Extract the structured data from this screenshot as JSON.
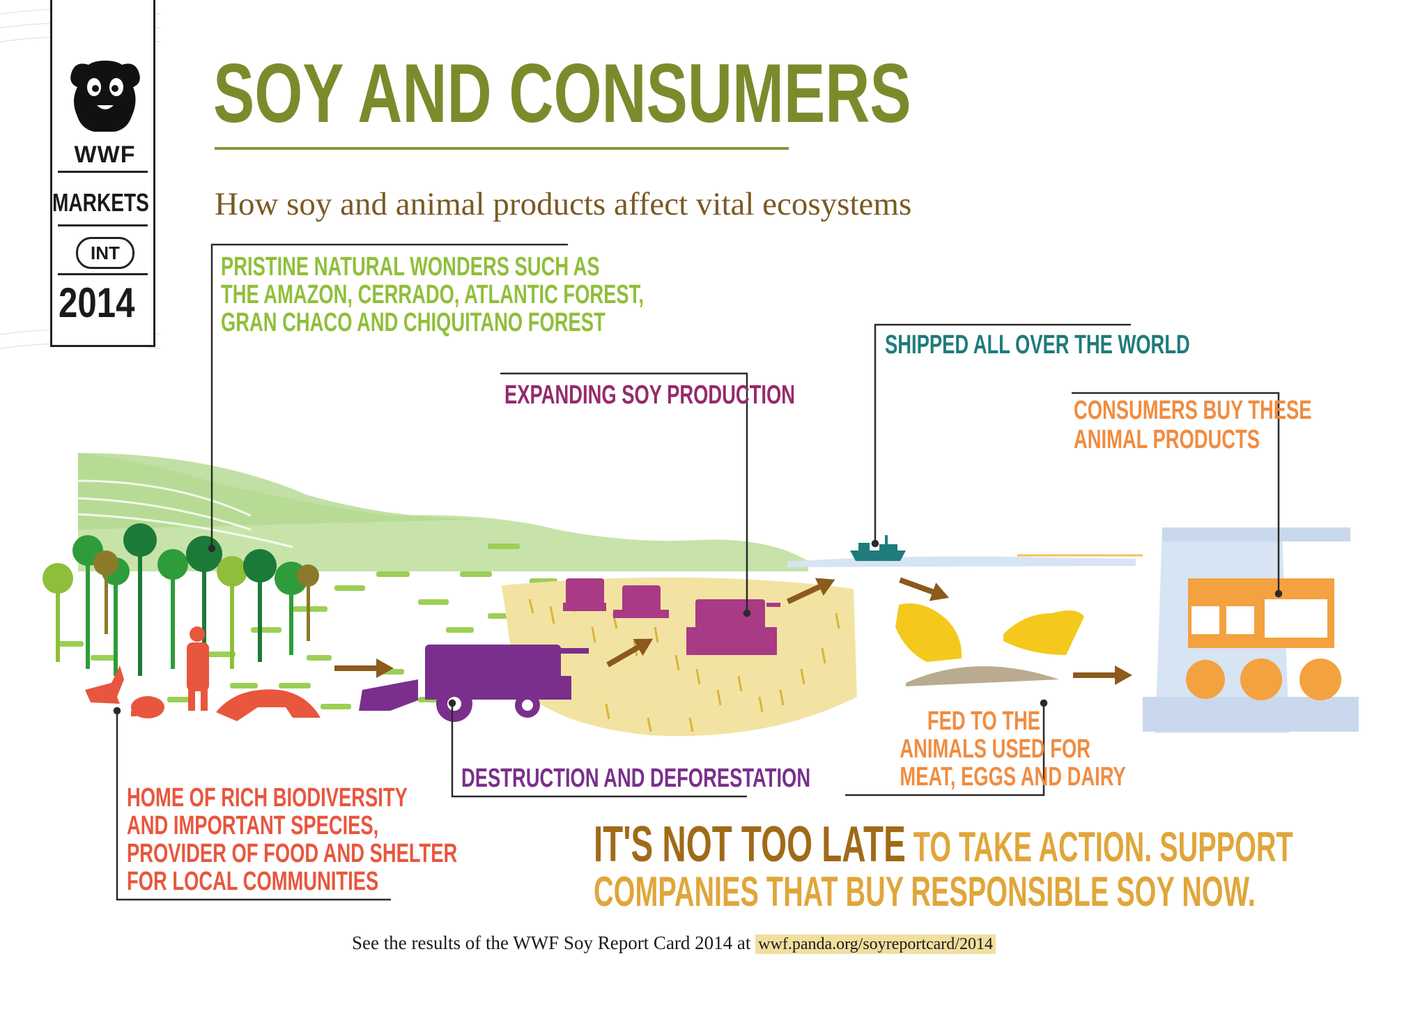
{
  "badge": {
    "logo_text": "WWF",
    "markets": "MARKETS",
    "int": "INT",
    "year": "2014"
  },
  "title": "SOY AND CONSUMERS",
  "subtitle": "How soy and animal products affect vital ecosystems",
  "callouts": {
    "pristine": [
      "PRISTINE NATURAL WONDERS SUCH AS",
      "THE AMAZON, CERRADO, ATLANTIC FOREST,",
      "GRAN CHACO AND CHIQUITANO FOREST"
    ],
    "shipped": "SHIPPED ALL OVER THE WORLD",
    "expanding": "EXPANDING SOY PRODUCTION",
    "consumers": [
      "CONSUMERS BUY THESE",
      "ANIMAL PRODUCTS"
    ],
    "home": [
      "HOME OF RICH BIODIVERSITY",
      "AND IMPORTANT SPECIES,",
      "PROVIDER OF FOOD AND SHELTER",
      "FOR LOCAL COMMUNITIES"
    ],
    "destruction": "DESTRUCTION AND DEFORESTATION",
    "fed": [
      "FED TO THE",
      "ANIMALS USED FOR",
      "MEAT, EGGS AND DAIRY"
    ]
  },
  "cta": {
    "emphasis": "IT'S NOT TOO LATE",
    "line1_rest": " TO TAKE ACTION. SUPPORT",
    "line2": "COMPANIES THAT BUY RESPONSIBLE SOY NOW."
  },
  "footer": {
    "text": "See the results of the WWF Soy Report Card 2014 at ",
    "url": "wwf.panda.org/soyreportcard/2014"
  },
  "colors": {
    "title": "#7d8a2c",
    "pristine": "#8fbf3a",
    "shipped": "#1f7b7c",
    "expanding": "#952a6c",
    "consumers": "#f08c40",
    "home": "#e8563e",
    "destruction": "#7a2f8c",
    "cta_dark": "#a06a18",
    "cta_light": "#e0a63a"
  },
  "icons": [
    "panda-logo-icon",
    "combine-harvester-icon",
    "ship-icon",
    "chicken-icon",
    "arrow-icon",
    "tree-icon",
    "anteater-icon",
    "armadillo-icon",
    "fox-icon",
    "person-icon",
    "supermarket-shelf-icon"
  ]
}
